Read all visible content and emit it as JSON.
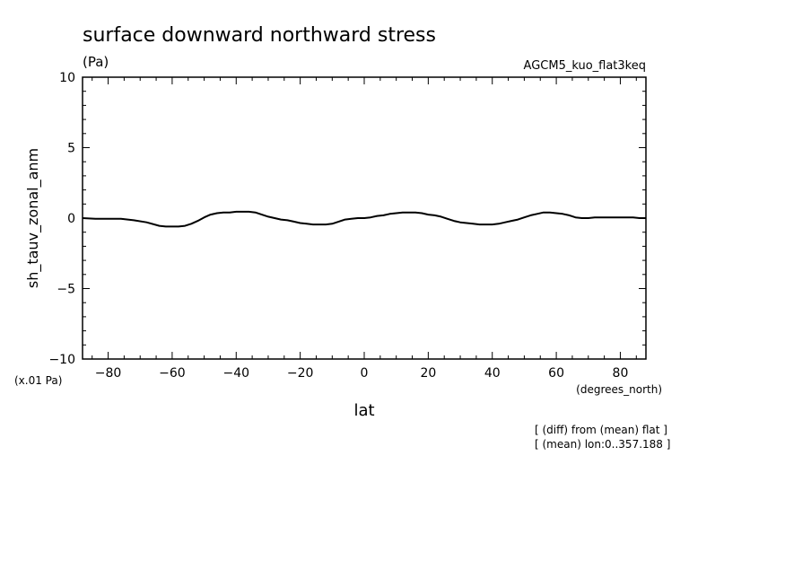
{
  "chart_data": {
    "type": "line",
    "title": "surface downward northward stress",
    "title_unit": "(Pa)",
    "dataset_label": "AGCM5_kuo_flat3keq",
    "ylabel": "sh_tauv_zonal_anm",
    "y_scale_note": "(x.01 Pa)",
    "xlabel": "lat",
    "x_unit": "(degrees_north)",
    "notes": [
      "[ (diff) from (mean) flat ]",
      "[ (mean) lon:0..357.188 ]"
    ],
    "xlim": [
      -88,
      88
    ],
    "ylim": [
      -10,
      10
    ],
    "x_ticks": [
      -80,
      -60,
      -40,
      -20,
      0,
      20,
      40,
      60,
      80
    ],
    "y_ticks": [
      -10,
      -5,
      0,
      5,
      10
    ],
    "grid": false,
    "series": [
      {
        "x": [
          -88,
          -84,
          -80,
          -76,
          -72,
          -68,
          -64,
          -62,
          -60,
          -58,
          -56,
          -54,
          -52,
          -50,
          -48,
          -46,
          -44,
          -42,
          -40,
          -38,
          -36,
          -34,
          -32,
          -30,
          -28,
          -26,
          -24,
          -22,
          -20,
          -18,
          -16,
          -14,
          -12,
          -10,
          -8,
          -6,
          -4,
          -2,
          0,
          2,
          4,
          6,
          8,
          10,
          12,
          14,
          16,
          18,
          20,
          22,
          24,
          26,
          28,
          30,
          32,
          34,
          36,
          38,
          40,
          42,
          44,
          46,
          48,
          50,
          52,
          54,
          56,
          58,
          60,
          62,
          64,
          66,
          68,
          70,
          72,
          74,
          76,
          78,
          80,
          82,
          84,
          86,
          88
        ],
        "values": [
          0.0,
          -0.05,
          -0.05,
          -0.05,
          -0.15,
          -0.3,
          -0.55,
          -0.6,
          -0.6,
          -0.6,
          -0.55,
          -0.4,
          -0.2,
          0.05,
          0.25,
          0.35,
          0.4,
          0.4,
          0.45,
          0.45,
          0.45,
          0.4,
          0.25,
          0.1,
          0.0,
          -0.1,
          -0.15,
          -0.25,
          -0.35,
          -0.4,
          -0.45,
          -0.45,
          -0.45,
          -0.4,
          -0.25,
          -0.1,
          -0.05,
          0.0,
          0.0,
          0.05,
          0.15,
          0.2,
          0.3,
          0.35,
          0.4,
          0.4,
          0.4,
          0.35,
          0.25,
          0.2,
          0.1,
          -0.05,
          -0.2,
          -0.3,
          -0.35,
          -0.4,
          -0.45,
          -0.45,
          -0.45,
          -0.4,
          -0.3,
          -0.2,
          -0.1,
          0.05,
          0.2,
          0.3,
          0.4,
          0.4,
          0.35,
          0.3,
          0.2,
          0.05,
          0.0,
          0.0,
          0.05,
          0.05,
          0.05,
          0.05,
          0.05,
          0.05,
          0.05,
          0.0,
          0.0
        ]
      }
    ]
  }
}
